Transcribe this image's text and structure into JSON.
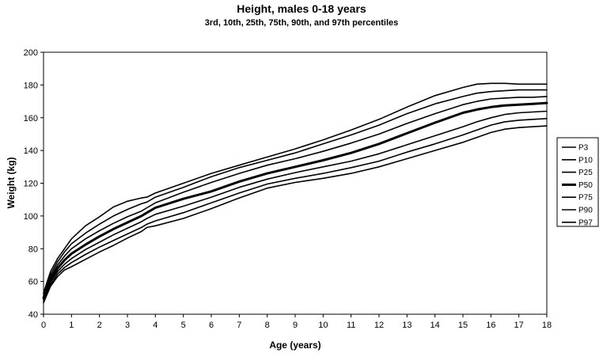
{
  "chart_data": {
    "type": "line",
    "title": "Height, males 0-18 years",
    "subtitle": "3rd, 10th, 25th, 75th, 90th, and 97th percentiles",
    "xlabel": "Age (years)",
    "ylabel": "Weight (kg)",
    "xlim": [
      0,
      18
    ],
    "ylim": [
      40,
      200
    ],
    "x_ticks": [
      "0",
      "1",
      "2",
      "3",
      "4",
      "5",
      "6",
      "7",
      "8",
      "9",
      "10",
      "11",
      "12",
      "13",
      "14",
      "15",
      "16",
      "17",
      "18"
    ],
    "y_ticks": [
      "40",
      "60",
      "80",
      "100",
      "120",
      "140",
      "160",
      "180",
      "200"
    ],
    "grid": false,
    "legend_position": "right",
    "line_color": "#000000",
    "x": [
      0,
      0.25,
      0.5,
      0.75,
      1,
      1.5,
      2,
      2.5,
      3,
      3.5,
      3.7,
      4,
      5,
      6,
      7,
      8,
      9,
      10,
      11,
      12,
      13,
      14,
      15,
      15.5,
      16,
      16.5,
      17,
      17.5,
      18
    ],
    "series": [
      {
        "name": "P3",
        "bold": false,
        "values": [
          47,
          57,
          63,
          67,
          69,
          73.5,
          78,
          82,
          86.5,
          90.5,
          93,
          94,
          98.5,
          104.5,
          111,
          117,
          120.5,
          123,
          126,
          130,
          135,
          140,
          145,
          148,
          151,
          153,
          154,
          154.5,
          155
        ]
      },
      {
        "name": "P10",
        "bold": false,
        "values": [
          48,
          58,
          64.5,
          68.5,
          71.5,
          76.5,
          81,
          85,
          89,
          93,
          95,
          97,
          102,
          108,
          114,
          119.5,
          123,
          126,
          129.5,
          133.5,
          139,
          144,
          149.5,
          152.5,
          155.5,
          157.5,
          158.5,
          159,
          159.5
        ]
      },
      {
        "name": "P25",
        "bold": false,
        "values": [
          49,
          59.5,
          66,
          70.5,
          74,
          79.5,
          84,
          88.5,
          92.5,
          96.5,
          98.5,
          101,
          106,
          111.5,
          117.5,
          122.5,
          126.5,
          130,
          133.5,
          138,
          143.5,
          149,
          154.5,
          157.5,
          160,
          162,
          163,
          163.5,
          164
        ]
      },
      {
        "name": "P50",
        "bold": true,
        "values": [
          50,
          61,
          68,
          73,
          77,
          82.5,
          87.5,
          92,
          96,
          100,
          102,
          105,
          110.5,
          115,
          121,
          126,
          130,
          134,
          138.5,
          144,
          150.5,
          157,
          163,
          165,
          166.5,
          167.5,
          168,
          168.5,
          169
        ]
      },
      {
        "name": "P75",
        "bold": false,
        "values": [
          51,
          62.5,
          70,
          75.5,
          80,
          86,
          91,
          95.5,
          99.5,
          103,
          105,
          108,
          114.5,
          120.5,
          126,
          131,
          135,
          139.5,
          144.5,
          150,
          156.5,
          162.5,
          168,
          170,
          171.5,
          172,
          172.5,
          172.5,
          173
        ]
      },
      {
        "name": "P90",
        "bold": false,
        "values": [
          52,
          64,
          72,
          78,
          83,
          89.5,
          95,
          100,
          104,
          107.5,
          108.5,
          111.5,
          117.5,
          124,
          129.5,
          134,
          138.5,
          144,
          149.5,
          155.5,
          162.5,
          168.5,
          173,
          175,
          176,
          176.5,
          177,
          177,
          177
        ]
      },
      {
        "name": "P97",
        "bold": false,
        "values": [
          53,
          66,
          74,
          80,
          86,
          94,
          99.5,
          105.5,
          109,
          111,
          111.5,
          114,
          120,
          126,
          131,
          136,
          141,
          146.5,
          152.5,
          159,
          166.5,
          173.5,
          178.5,
          180.5,
          181,
          181,
          180.5,
          180.5,
          180.5
        ]
      }
    ]
  }
}
